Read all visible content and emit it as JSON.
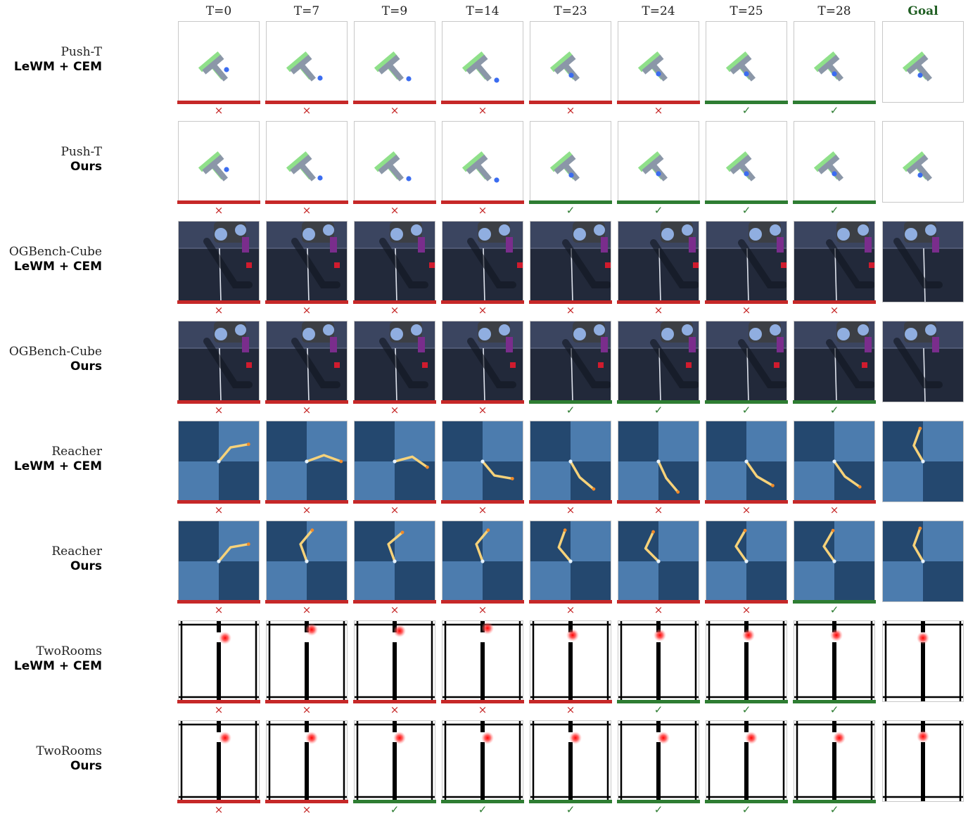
{
  "columns": [
    "T=0",
    "T=7",
    "T=9",
    "T=14",
    "T=23",
    "T=24",
    "T=25",
    "T=28",
    "Goal"
  ],
  "status_colors": {
    "success": "#2e7d32",
    "failure": "#c62828"
  },
  "marks": {
    "success": "✓",
    "failure": "×"
  },
  "rows": [
    {
      "env": "Push-T",
      "method": "LeWM + CEM",
      "scene": "pusht",
      "results": [
        "failure",
        "failure",
        "failure",
        "failure",
        "failure",
        "failure",
        "success",
        "success"
      ]
    },
    {
      "env": "Push-T",
      "method": "Ours",
      "scene": "pusht",
      "results": [
        "failure",
        "failure",
        "failure",
        "failure",
        "success",
        "success",
        "success",
        "success"
      ]
    },
    {
      "env": "OGBench-Cube",
      "method": "LeWM + CEM",
      "scene": "cube",
      "results": [
        "failure",
        "failure",
        "failure",
        "failure",
        "failure",
        "failure",
        "failure",
        "failure"
      ]
    },
    {
      "env": "OGBench-Cube",
      "method": "Ours",
      "scene": "cube",
      "results": [
        "failure",
        "failure",
        "failure",
        "failure",
        "success",
        "success",
        "success",
        "success"
      ]
    },
    {
      "env": "Reacher",
      "method": "LeWM + CEM",
      "scene": "reacher",
      "results": [
        "failure",
        "failure",
        "failure",
        "failure",
        "failure",
        "failure",
        "failure",
        "failure"
      ]
    },
    {
      "env": "Reacher",
      "method": "Ours",
      "scene": "reacher",
      "results": [
        "failure",
        "failure",
        "failure",
        "failure",
        "failure",
        "failure",
        "failure",
        "success"
      ]
    },
    {
      "env": "TwoRooms",
      "method": "LeWM + CEM",
      "scene": "tworooms",
      "results": [
        "failure",
        "failure",
        "failure",
        "failure",
        "failure",
        "success",
        "success",
        "success"
      ]
    },
    {
      "env": "TwoRooms",
      "method": "Ours",
      "scene": "tworooms",
      "results": [
        "failure",
        "failure",
        "success",
        "success",
        "success",
        "success",
        "success",
        "success"
      ]
    }
  ]
}
